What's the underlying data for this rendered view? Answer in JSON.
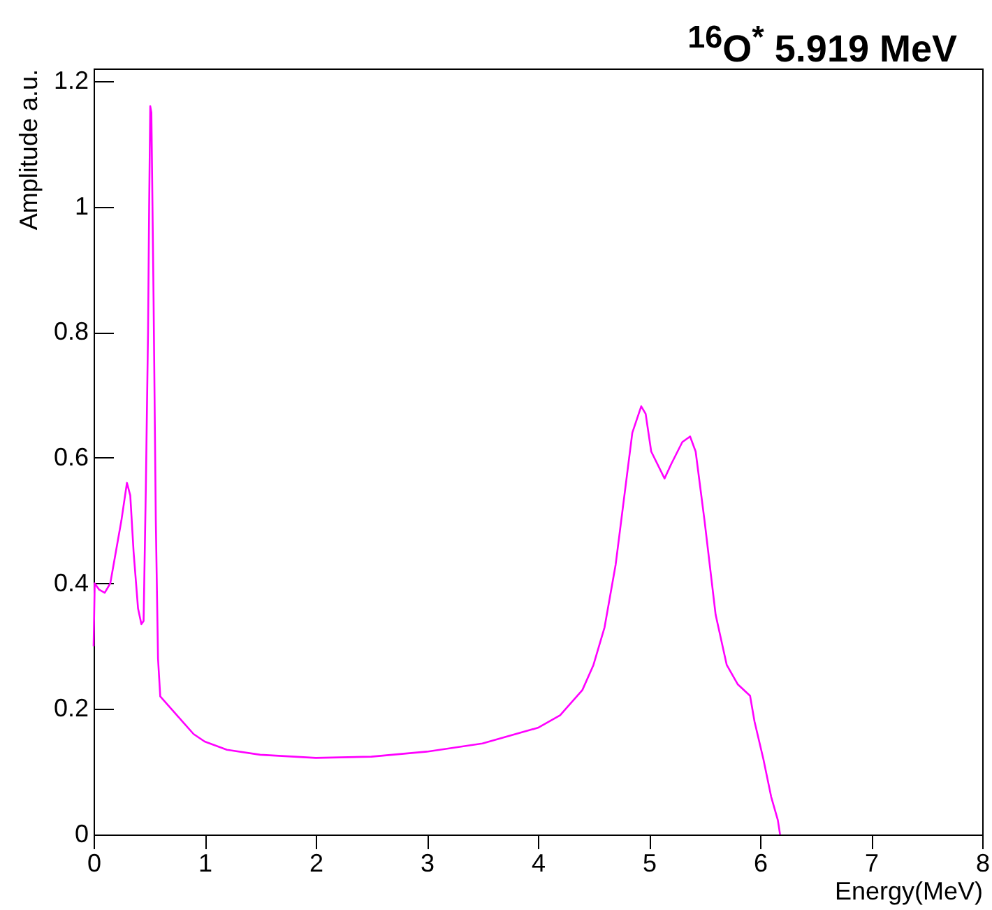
{
  "chart_data": {
    "type": "line",
    "title": "$^{16}$O$^{*}$ 5.919 MeV",
    "xlabel": "Energy(MeV)",
    "ylabel": "Amplitude a.u.",
    "xlim": [
      0,
      8
    ],
    "xticks": [
      0,
      1,
      2,
      3,
      4,
      5,
      6,
      7,
      8
    ],
    "ylim": [
      0,
      1.22
    ],
    "yticks": [
      0,
      0.2,
      0.4,
      0.6,
      0.8,
      1,
      1.2
    ],
    "grid": false,
    "legend": false,
    "series": [
      {
        "color": "#ff00ff",
        "x": [
          0,
          0.01,
          0.05,
          0.1,
          0.15,
          0.2,
          0.25,
          0.3,
          0.33,
          0.36,
          0.4,
          0.43,
          0.45,
          0.47,
          0.49,
          0.5,
          0.51,
          0.52,
          0.54,
          0.56,
          0.58,
          0.6,
          0.7,
          0.8,
          0.9,
          1.0,
          1.2,
          1.5,
          2.0,
          2.5,
          3.0,
          3.5,
          4.0,
          4.2,
          4.4,
          4.5,
          4.6,
          4.7,
          4.8,
          4.85,
          4.93,
          4.97,
          5.02,
          5.14,
          5.2,
          5.3,
          5.37,
          5.42,
          5.5,
          5.6,
          5.7,
          5.8,
          5.91,
          5.95,
          6.03,
          6.1,
          6.16,
          6.18
        ],
        "values": [
          0.3,
          0.4,
          0.39,
          0.385,
          0.4,
          0.45,
          0.5,
          0.56,
          0.54,
          0.45,
          0.36,
          0.335,
          0.34,
          0.55,
          0.8,
          1.0,
          1.16,
          1.15,
          0.85,
          0.5,
          0.28,
          0.22,
          0.2,
          0.18,
          0.16,
          0.148,
          0.135,
          0.127,
          0.122,
          0.124,
          0.132,
          0.145,
          0.17,
          0.19,
          0.23,
          0.27,
          0.33,
          0.43,
          0.57,
          0.64,
          0.682,
          0.67,
          0.61,
          0.567,
          0.59,
          0.625,
          0.634,
          0.61,
          0.5,
          0.35,
          0.27,
          0.239,
          0.221,
          0.18,
          0.12,
          0.06,
          0.023,
          0
        ]
      }
    ]
  }
}
